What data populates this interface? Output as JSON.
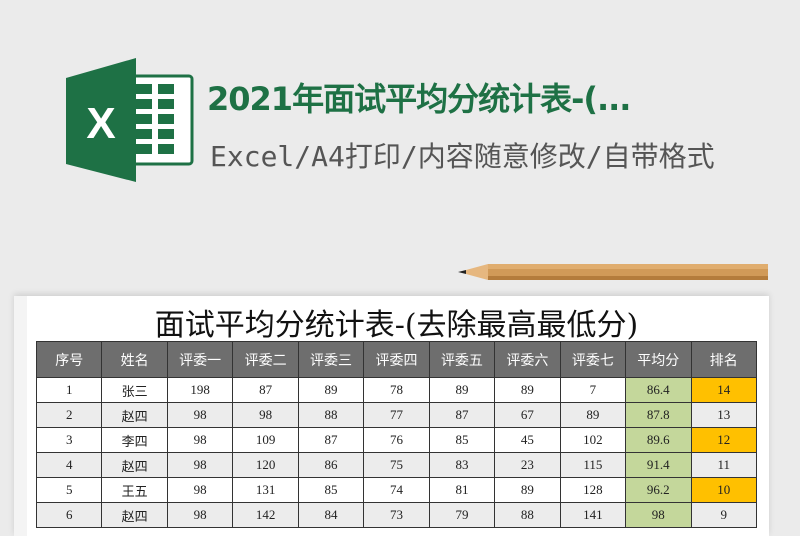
{
  "header": {
    "title": "2021年面试平均分统计表-(...",
    "subtitle": "Excel/A4打印/内容随意修改/自带格式",
    "logo": {
      "icon": "excel-logo-icon",
      "letter": "X",
      "color": "#1e7145"
    }
  },
  "sheet": {
    "title": "面试平均分统计表-(去除最高最低分)",
    "columns": [
      "序号",
      "姓名",
      "评委一",
      "评委二",
      "评委三",
      "评委四",
      "评委五",
      "评委六",
      "评委七",
      "平均分",
      "排名"
    ],
    "rows": [
      [
        "1",
        "张三",
        "198",
        "87",
        "89",
        "78",
        "89",
        "89",
        "7",
        "86.4",
        "14"
      ],
      [
        "2",
        "赵四",
        "98",
        "98",
        "88",
        "77",
        "87",
        "67",
        "89",
        "87.8",
        "13"
      ],
      [
        "3",
        "李四",
        "98",
        "109",
        "87",
        "76",
        "85",
        "45",
        "102",
        "89.6",
        "12"
      ],
      [
        "4",
        "赵四",
        "98",
        "120",
        "86",
        "75",
        "83",
        "23",
        "115",
        "91.4",
        "11"
      ],
      [
        "5",
        "王五",
        "98",
        "131",
        "85",
        "74",
        "81",
        "89",
        "128",
        "96.2",
        "10"
      ],
      [
        "6",
        "赵四",
        "98",
        "142",
        "84",
        "73",
        "79",
        "88",
        "141",
        "98",
        "9"
      ]
    ],
    "highlighted_rank_rows": [
      1,
      3,
      5
    ],
    "colors": {
      "header": "#6e6e6e",
      "average": "#c4d79b",
      "rank_highlight": "#ffc000"
    }
  }
}
